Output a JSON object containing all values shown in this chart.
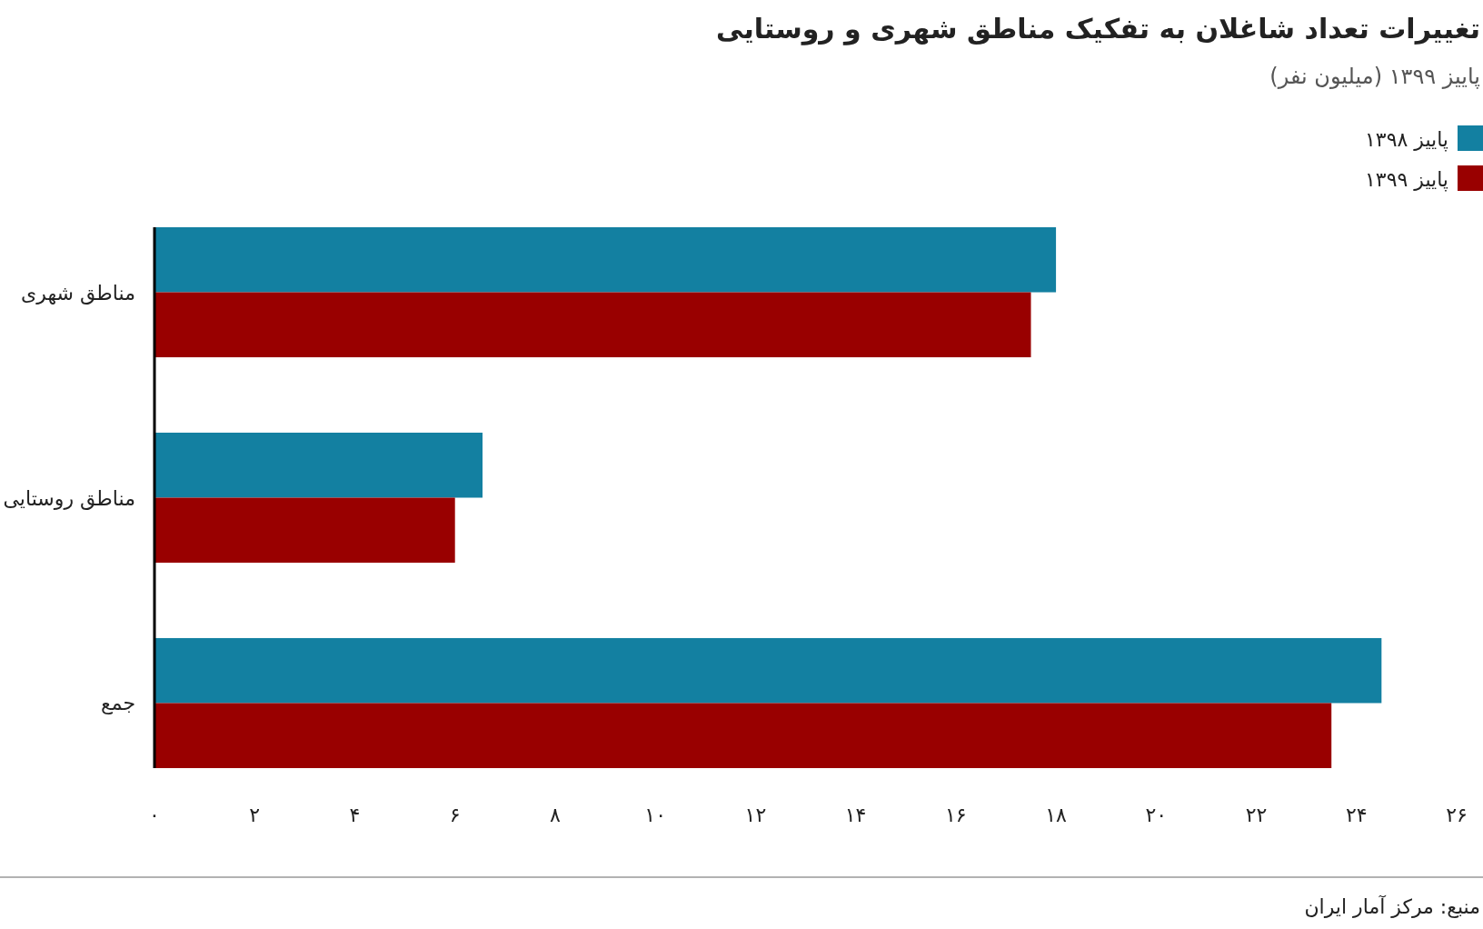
{
  "chart_data": {
    "type": "bar",
    "orientation": "horizontal",
    "title": "تغییرات تعداد شاغلان به تفکیک مناطق شهری و روستایی",
    "subtitle": "پاییز ۱۳۹۹ (میلیون نفر)",
    "annotations": [
      "منبع: مرکز آمار ایران"
    ],
    "categories": [
      "مناطق شهری",
      "مناطق روستایی",
      "جمع"
    ],
    "series": [
      {
        "name": "پاییز ۱۳۹۸",
        "color": "#1380a1",
        "values": [
          18.0,
          6.55,
          24.5
        ]
      },
      {
        "name": "پاییز ۱۳۹۹",
        "color": "#990000",
        "values": [
          17.5,
          6.0,
          23.5
        ]
      }
    ],
    "xlim": [
      0,
      26
    ],
    "xticks": [
      {
        "value": 0,
        "label": "۰"
      },
      {
        "value": 2,
        "label": "۲"
      },
      {
        "value": 4,
        "label": "۴"
      },
      {
        "value": 6,
        "label": "۶"
      },
      {
        "value": 8,
        "label": "۸"
      },
      {
        "value": 10,
        "label": "۱۰"
      },
      {
        "value": 12,
        "label": "۱۲"
      },
      {
        "value": 14,
        "label": "۱۴"
      },
      {
        "value": 16,
        "label": "۱۶"
      },
      {
        "value": 18,
        "label": "۱۸"
      },
      {
        "value": 20,
        "label": "۲۰"
      },
      {
        "value": 22,
        "label": "۲۲"
      },
      {
        "value": 24,
        "label": "۲۴"
      },
      {
        "value": 26,
        "label": "۲۶"
      }
    ],
    "grid": false,
    "legend": "top right"
  }
}
